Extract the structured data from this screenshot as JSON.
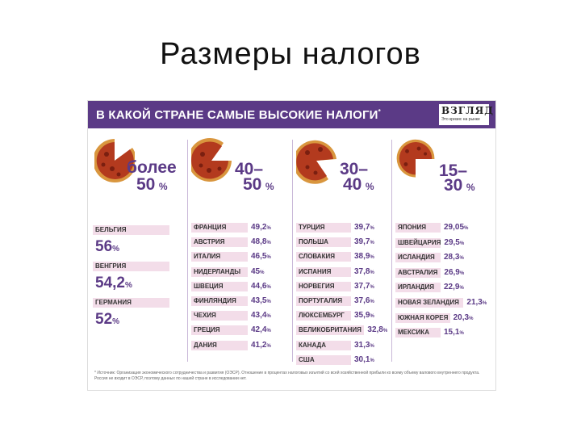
{
  "slide_title": "Размеры налогов",
  "header": {
    "title": "В КАКОЙ СТРАНЕ САМЫЕ ВЫСОКИЕ НАЛОГИ",
    "title_mark": "*",
    "logo": "ВЗГЛЯД",
    "logo_sub": "Это кризис на рынке"
  },
  "groups": [
    {
      "range_top": "более",
      "range_bottom": "50",
      "unit": "%",
      "countries": [
        {
          "name": "БЕЛЬГИЯ",
          "value": "56",
          "unit": "%"
        },
        {
          "name": "ВЕНГРИЯ",
          "value": "54,2",
          "unit": "%"
        },
        {
          "name": "ГЕРМАНИЯ",
          "value": "52",
          "unit": "%"
        }
      ]
    },
    {
      "range_top": "40–",
      "range_bottom": "50",
      "unit": "%",
      "countries": [
        {
          "name": "ФРАНЦИЯ",
          "value": "49,2",
          "unit": "%"
        },
        {
          "name": "АВСТРИЯ",
          "value": "48,8",
          "unit": "%"
        },
        {
          "name": "ИТАЛИЯ",
          "value": "46,5",
          "unit": "%"
        },
        {
          "name": "НИДЕРЛАНДЫ",
          "value": "45",
          "unit": "%"
        },
        {
          "name": "ШВЕЦИЯ",
          "value": "44,6",
          "unit": "%"
        },
        {
          "name": "ФИНЛЯНДИЯ",
          "value": "43,5",
          "unit": "%"
        },
        {
          "name": "ЧЕХИЯ",
          "value": "43,4",
          "unit": "%"
        },
        {
          "name": "ГРЕЦИЯ",
          "value": "42,4",
          "unit": "%"
        },
        {
          "name": "ДАНИЯ",
          "value": "41,2",
          "unit": "%"
        }
      ]
    },
    {
      "range_top": "30–",
      "range_bottom": "40",
      "unit": "%",
      "countries": [
        {
          "name": "ТУРЦИЯ",
          "value": "39,7",
          "unit": "%"
        },
        {
          "name": "ПОЛЬША",
          "value": "39,7",
          "unit": "%"
        },
        {
          "name": "СЛОВАКИЯ",
          "value": "38,9",
          "unit": "%"
        },
        {
          "name": "ИСПАНИЯ",
          "value": "37,8",
          "unit": "%"
        },
        {
          "name": "НОРВЕГИЯ",
          "value": "37,7",
          "unit": "%"
        },
        {
          "name": "ПОРТУГАЛИЯ",
          "value": "37,6",
          "unit": "%"
        },
        {
          "name": "ЛЮКСЕМБУРГ",
          "value": "35,9",
          "unit": "%"
        },
        {
          "name": "ВЕЛИКОБРИТАНИЯ",
          "value": "32,8",
          "unit": "%"
        },
        {
          "name": "КАНАДА",
          "value": "31,3",
          "unit": "%"
        },
        {
          "name": "США",
          "value": "30,1",
          "unit": "%"
        }
      ]
    },
    {
      "range_top": "15–",
      "range_bottom": "30",
      "unit": "%",
      "countries": [
        {
          "name": "ЯПОНИЯ",
          "value": "29,05",
          "unit": "%"
        },
        {
          "name": "ШВЕЙЦАРИЯ",
          "value": "29,5",
          "unit": "%"
        },
        {
          "name": "ИСЛАНДИЯ",
          "value": "28,3",
          "unit": "%"
        },
        {
          "name": "АВСТРАЛИЯ",
          "value": "26,9",
          "unit": "%"
        },
        {
          "name": "ИРЛАНДИЯ",
          "value": "22,9",
          "unit": "%"
        },
        {
          "name": "НОВАЯ ЗЕЛАНДИЯ",
          "value": "21,3",
          "unit": "%"
        },
        {
          "name": "ЮЖНАЯ КОРЕЯ",
          "value": "20,3",
          "unit": "%"
        },
        {
          "name": "МЕКСИКА",
          "value": "15,1",
          "unit": "%"
        }
      ]
    }
  ],
  "footnote": "* Источник: Организация экономического сотрудничества и развития (ОЭСР). Отношение в процентах налоговых изъятий со всей хозяйственной прибыли ко всему объему валового внутреннего продукта. Россия не входит в ОЭСР, поэтому данных по нашей стране в исследовании нет.",
  "colors": {
    "accent": "#5b3a86",
    "bar": "#f3dde9",
    "crust": "#d9963e"
  }
}
